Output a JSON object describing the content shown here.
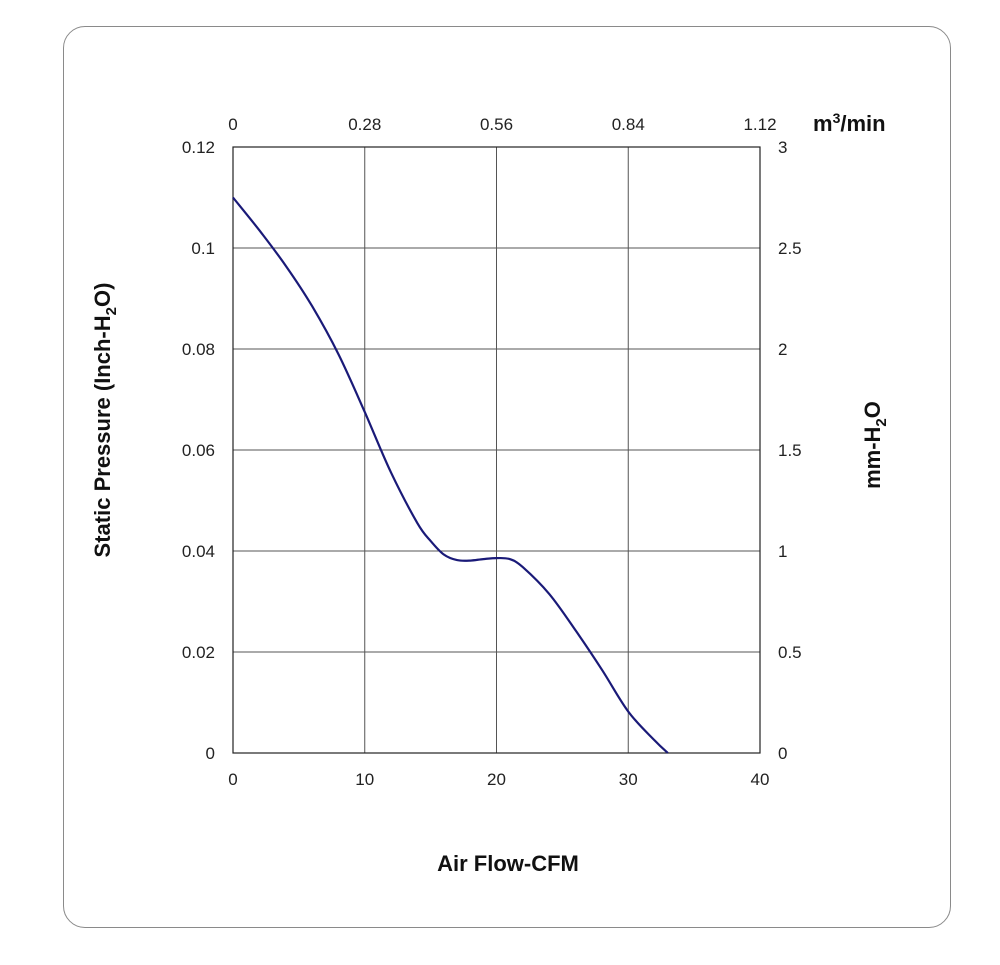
{
  "chart_data": {
    "type": "line",
    "x_bottom": {
      "label": "Air Flow-CFM",
      "ticks": [
        0,
        10,
        20,
        30,
        40
      ],
      "range": [
        0,
        40
      ]
    },
    "x_top": {
      "unit_label": {
        "base": "m",
        "sup": "3",
        "rest": "/min"
      },
      "ticks": [
        "0",
        "0.28",
        "0.56",
        "0.84",
        "1.12"
      ]
    },
    "y_left": {
      "label": {
        "before": "Static Pressure (Inch-H",
        "sub": "2",
        "after": "O)"
      },
      "ticks": [
        "0",
        "0.02",
        "0.04",
        "0.06",
        "0.08",
        "0.1",
        "0.12"
      ],
      "range": [
        0,
        0.12
      ]
    },
    "y_right": {
      "label": {
        "before": "mm-H",
        "sub": "2",
        "after": "O"
      },
      "ticks": [
        "0",
        "0.5",
        "1",
        "1.5",
        "2",
        "2.5",
        "3"
      ]
    },
    "grid": true,
    "series": [
      {
        "color": "#1a1a78",
        "x": [
          0,
          2,
          4,
          6,
          8,
          10,
          12,
          14,
          15,
          16,
          17,
          18,
          19,
          20,
          21,
          22,
          24,
          26,
          28,
          30,
          32,
          33
        ],
        "y": [
          0.11,
          0.1035,
          0.0965,
          0.0885,
          0.079,
          0.0675,
          0.0555,
          0.0455,
          0.042,
          0.0393,
          0.0382,
          0.0381,
          0.0384,
          0.0386,
          0.0384,
          0.0368,
          0.0315,
          0.0243,
          0.0165,
          0.0082,
          0.0025,
          0.0
        ]
      }
    ]
  }
}
